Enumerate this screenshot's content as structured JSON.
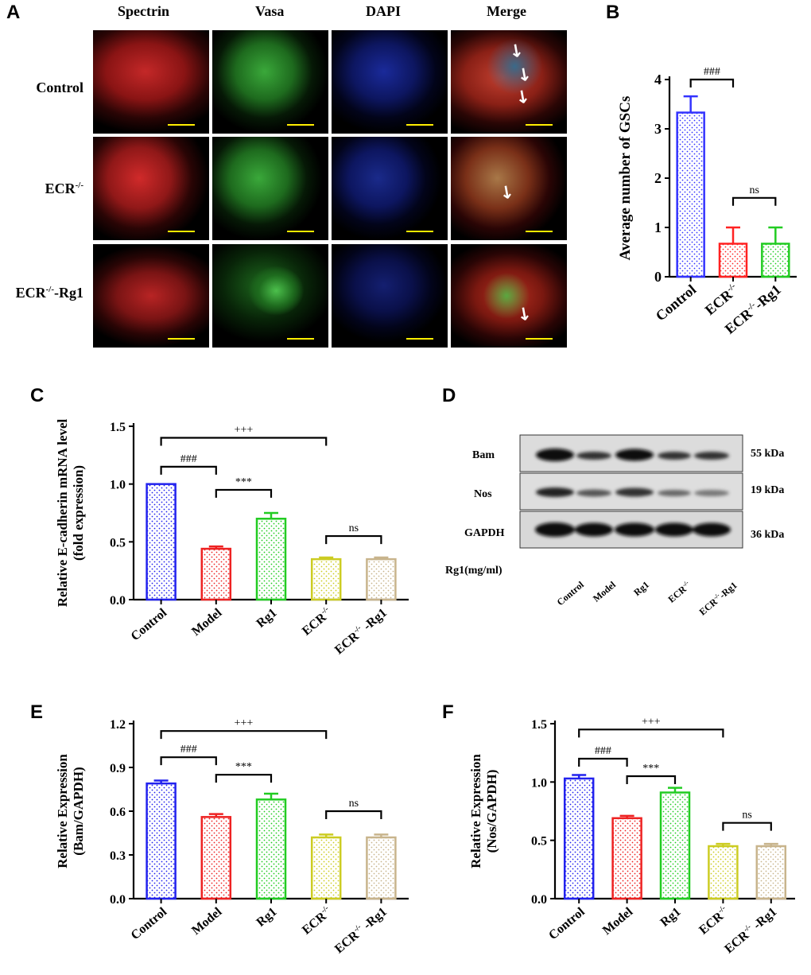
{
  "panelA": {
    "label": "A",
    "channels": [
      {
        "name": "Spectrin",
        "color": "#c00000"
      },
      {
        "name": "Vasa",
        "color": "#1e9e3a"
      },
      {
        "name": "DAPI",
        "color": "#1b4f9c"
      },
      {
        "name": "Merge",
        "color": "#f08a24"
      }
    ],
    "rows": [
      {
        "base": "Control",
        "sup": "",
        "suffix": ""
      },
      {
        "base": "ECR",
        "sup": "-/-",
        "suffix": ""
      },
      {
        "base": "ECR",
        "sup": "-/-",
        "suffix": "-Rg1"
      }
    ]
  },
  "panelD": {
    "label": "D",
    "rows": [
      {
        "name": "Bam",
        "kda": "55 kDa"
      },
      {
        "name": "Nos",
        "kda": "19 kDa"
      },
      {
        "name": "GAPDH",
        "kda": "36 kDa"
      }
    ],
    "treatment_label": "Rg1(mg/ml)",
    "lanes": [
      {
        "base": "Control",
        "sup": "",
        "suffix": ""
      },
      {
        "base": "Model",
        "sup": "",
        "suffix": ""
      },
      {
        "base": "Rg1",
        "sup": "",
        "suffix": ""
      },
      {
        "base": "ECR",
        "sup": "-/-",
        "suffix": ""
      },
      {
        "base": "ECR",
        "sup": "-/-",
        "suffix": "-Rg1"
      }
    ]
  },
  "chart_data": [
    {
      "panel": "B",
      "type": "bar",
      "ylabel": "Average number of GSCs",
      "ylim": [
        0,
        4
      ],
      "yticks": [
        "0",
        "1",
        "2",
        "3",
        "4"
      ],
      "categories": [
        {
          "base": "Control",
          "sup": "",
          "suffix": ""
        },
        {
          "base": "ECR",
          "sup": "-/-",
          "suffix": ""
        },
        {
          "base": "ECR",
          "sup": "-/-",
          "suffix": "-Rg1"
        }
      ],
      "values": [
        3.33,
        0.67,
        0.67
      ],
      "errors": [
        0.33,
        0.33,
        0.33
      ],
      "colors": [
        "#3333ff",
        "#ff2222",
        "#22cc22"
      ],
      "annotations": [
        {
          "from": 0,
          "to": 1,
          "text": "###",
          "y": 4.0
        },
        {
          "from": 1,
          "to": 2,
          "text": "ns",
          "y": 1.6
        }
      ]
    },
    {
      "panel": "C",
      "type": "bar",
      "ylabel": [
        "Relative E-cadherin mRNA level",
        "(fold expression)"
      ],
      "ylim": [
        0,
        1.5
      ],
      "yticks": [
        "0.0",
        "0.5",
        "1.0",
        "1.5"
      ],
      "categories": [
        {
          "base": "Control",
          "sup": "",
          "suffix": ""
        },
        {
          "base": "Model",
          "sup": "",
          "suffix": ""
        },
        {
          "base": "Rg1",
          "sup": "",
          "suffix": ""
        },
        {
          "base": "ECR",
          "sup": "-/-",
          "suffix": ""
        },
        {
          "base": "ECR",
          "sup": "-/-",
          "suffix": " -Rg1"
        }
      ],
      "values": [
        1.0,
        0.44,
        0.7,
        0.35,
        0.35
      ],
      "errors": [
        0.0,
        0.02,
        0.05,
        0.015,
        0.015
      ],
      "colors": [
        "#2222ee",
        "#ee2222",
        "#22cc22",
        "#cccc22",
        "#c8b48c"
      ],
      "annotations": [
        {
          "from": 0,
          "to": 3,
          "text": "+++",
          "y": 1.4
        },
        {
          "from": 0,
          "to": 1,
          "text": "###",
          "y": 1.15
        },
        {
          "from": 1,
          "to": 2,
          "text": "***",
          "y": 0.95
        },
        {
          "from": 3,
          "to": 4,
          "text": "ns",
          "y": 0.55
        }
      ]
    },
    {
      "panel": "E",
      "type": "bar",
      "ylabel": [
        "Relative Expression",
        "(Bam/GAPDH)"
      ],
      "ylim": [
        0,
        1.2
      ],
      "yticks": [
        "0.0",
        "0.3",
        "0.6",
        "0.9",
        "1.2"
      ],
      "categories": [
        {
          "base": "Control",
          "sup": "",
          "suffix": ""
        },
        {
          "base": "Model",
          "sup": "",
          "suffix": ""
        },
        {
          "base": "Rg1",
          "sup": "",
          "suffix": ""
        },
        {
          "base": "ECR",
          "sup": "-/-",
          "suffix": ""
        },
        {
          "base": "ECR",
          "sup": "-/-",
          "suffix": " -Rg1"
        }
      ],
      "values": [
        0.79,
        0.56,
        0.68,
        0.42,
        0.42
      ],
      "errors": [
        0.02,
        0.02,
        0.04,
        0.02,
        0.02
      ],
      "colors": [
        "#2222ee",
        "#ee2222",
        "#22cc22",
        "#cccc22",
        "#c8b48c"
      ],
      "annotations": [
        {
          "from": 0,
          "to": 3,
          "text": "+++",
          "y": 1.15
        },
        {
          "from": 0,
          "to": 1,
          "text": "###",
          "y": 0.97
        },
        {
          "from": 1,
          "to": 2,
          "text": "***",
          "y": 0.85
        },
        {
          "from": 3,
          "to": 4,
          "text": "ns",
          "y": 0.6
        }
      ]
    },
    {
      "panel": "F",
      "type": "bar",
      "ylabel": [
        "Relative Expression",
        "(Nos/GAPDH)"
      ],
      "ylim": [
        0,
        1.5
      ],
      "yticks": [
        "0.0",
        "0.5",
        "1.0",
        "1.5"
      ],
      "categories": [
        {
          "base": "Control",
          "sup": "",
          "suffix": ""
        },
        {
          "base": "Model",
          "sup": "",
          "suffix": ""
        },
        {
          "base": "Rg1",
          "sup": "",
          "suffix": ""
        },
        {
          "base": "ECR",
          "sup": "-/-",
          "suffix": ""
        },
        {
          "base": "ECR",
          "sup": "-/-",
          "suffix": " -Rg1"
        }
      ],
      "values": [
        1.03,
        0.69,
        0.91,
        0.45,
        0.45
      ],
      "errors": [
        0.03,
        0.02,
        0.04,
        0.02,
        0.02
      ],
      "colors": [
        "#2222ee",
        "#ee2222",
        "#22cc22",
        "#cccc22",
        "#c8b48c"
      ],
      "annotations": [
        {
          "from": 0,
          "to": 3,
          "text": "+++",
          "y": 1.45
        },
        {
          "from": 0,
          "to": 1,
          "text": "###",
          "y": 1.2
        },
        {
          "from": 1,
          "to": 2,
          "text": "***",
          "y": 1.05
        },
        {
          "from": 3,
          "to": 4,
          "text": "ns",
          "y": 0.65
        }
      ]
    }
  ]
}
